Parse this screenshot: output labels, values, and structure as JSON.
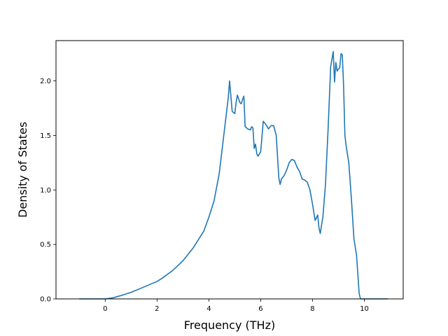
{
  "chart_data": {
    "type": "line",
    "title": "",
    "xlabel": "Frequency (THz)",
    "ylabel": "Density of States",
    "xlim": [
      -1.9,
      11.5
    ],
    "ylim": [
      0.0,
      2.37
    ],
    "xticks": [
      0,
      2,
      4,
      6,
      8,
      10
    ],
    "yticks": [
      0.0,
      0.5,
      1.0,
      1.5,
      2.0
    ],
    "xtick_labels": [
      "0",
      "2",
      "4",
      "6",
      "8",
      "10"
    ],
    "ytick_labels": [
      "0.0",
      "0.5",
      "1.0",
      "1.5",
      "2.0"
    ],
    "grid": false,
    "line_color": "#1f77b4",
    "series": [
      {
        "x": [
          -1.0,
          -0.5,
          0.0,
          0.3,
          0.6,
          1.0,
          1.4,
          1.8,
          2.0,
          2.2,
          2.6,
          3.0,
          3.4,
          3.8,
          4.0,
          4.2,
          4.4,
          4.5,
          4.6,
          4.7,
          4.75,
          4.8,
          4.9,
          5.0,
          5.05,
          5.1,
          5.2,
          5.25,
          5.3,
          5.35,
          5.4,
          5.5,
          5.6,
          5.65,
          5.7,
          5.75,
          5.8,
          5.85,
          5.9,
          5.95,
          6.0,
          6.1,
          6.2,
          6.3,
          6.4,
          6.5,
          6.6,
          6.7,
          6.75,
          6.8,
          6.9,
          7.0,
          7.1,
          7.2,
          7.3,
          7.35,
          7.4,
          7.5,
          7.6,
          7.7,
          7.8,
          7.9,
          8.0,
          8.1,
          8.2,
          8.25,
          8.3,
          8.35,
          8.4,
          8.5,
          8.6,
          8.7,
          8.8,
          8.85,
          8.9,
          8.95,
          9.0,
          9.05,
          9.1,
          9.15,
          9.2,
          9.25,
          9.3,
          9.4,
          9.5,
          9.6,
          9.7,
          9.8,
          9.85,
          9.9,
          9.95,
          10.0,
          10.2,
          10.5,
          10.9
        ],
        "y": [
          0.0,
          0.0,
          0.0,
          0.01,
          0.03,
          0.06,
          0.1,
          0.14,
          0.16,
          0.19,
          0.26,
          0.35,
          0.47,
          0.62,
          0.75,
          0.9,
          1.15,
          1.35,
          1.55,
          1.75,
          1.85,
          2.0,
          1.72,
          1.7,
          1.8,
          1.87,
          1.8,
          1.79,
          1.83,
          1.86,
          1.58,
          1.56,
          1.55,
          1.58,
          1.57,
          1.38,
          1.42,
          1.33,
          1.31,
          1.33,
          1.35,
          1.63,
          1.6,
          1.56,
          1.59,
          1.59,
          1.5,
          1.11,
          1.05,
          1.1,
          1.13,
          1.18,
          1.25,
          1.28,
          1.27,
          1.24,
          1.21,
          1.17,
          1.1,
          1.09,
          1.07,
          1.0,
          0.87,
          0.72,
          0.77,
          0.65,
          0.6,
          0.68,
          0.75,
          1.05,
          1.55,
          2.13,
          2.27,
          1.99,
          2.17,
          2.09,
          2.11,
          2.12,
          2.25,
          2.24,
          1.95,
          1.5,
          1.4,
          1.25,
          0.92,
          0.55,
          0.4,
          0.05,
          0.0,
          0.0,
          0.0,
          0.0,
          0.0,
          0.0,
          0.0
        ]
      }
    ]
  }
}
